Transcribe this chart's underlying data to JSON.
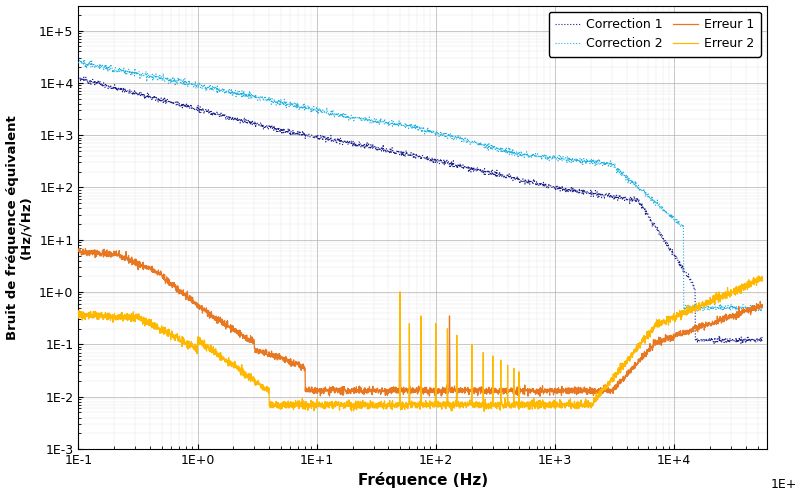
{
  "title": "",
  "xlabel": "Fréquence (Hz)",
  "ylabel": "Bruit de fréquence équivalent\n(Hz/√Hz)",
  "xlim": [
    0.1,
    60000
  ],
  "ylim": [
    0.001,
    300000.0
  ],
  "legend_entries": [
    "Erreur 1",
    "Erreur 2",
    "Correction 1",
    "Correction 2"
  ],
  "colors": {
    "erreur1": "#E87722",
    "erreur2": "#FFB800",
    "correction1": "#1B1F8A",
    "correction2": "#1FB0E0"
  },
  "grid_color": "#AAAAAA",
  "background_color": "#FFFFFF"
}
